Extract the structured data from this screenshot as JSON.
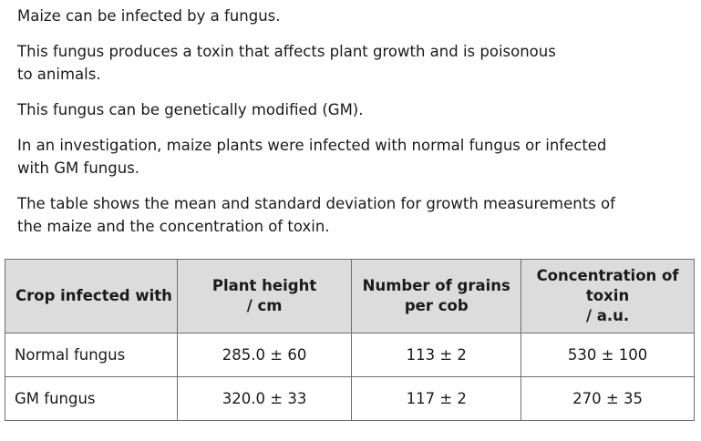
{
  "paragraphs": [
    "Maize can be infected by a fungus.",
    "This fungus produces a toxin that affects plant growth and is poisonous\nto animals.",
    "This fungus can be genetically modified (GM).",
    "In an investigation, maize plants were infected with normal fungus or infected\nwith GM fungus.",
    "The table shows the mean and standard deviation for growth measurements of\nthe maize and the concentration of toxin."
  ],
  "table": {
    "headers": [
      "Crop infected with",
      "Plant height\n/ cm",
      "Number of grains\nper cob",
      "Concentration of\ntoxin\n/ a.u."
    ],
    "rows": [
      [
        "Normal fungus",
        "285.0 ± 60",
        "113 ± 2",
        "530 ± 100"
      ],
      [
        "GM fungus",
        "320.0 ± 33",
        "117 ± 2",
        "270 ± 35"
      ]
    ]
  }
}
